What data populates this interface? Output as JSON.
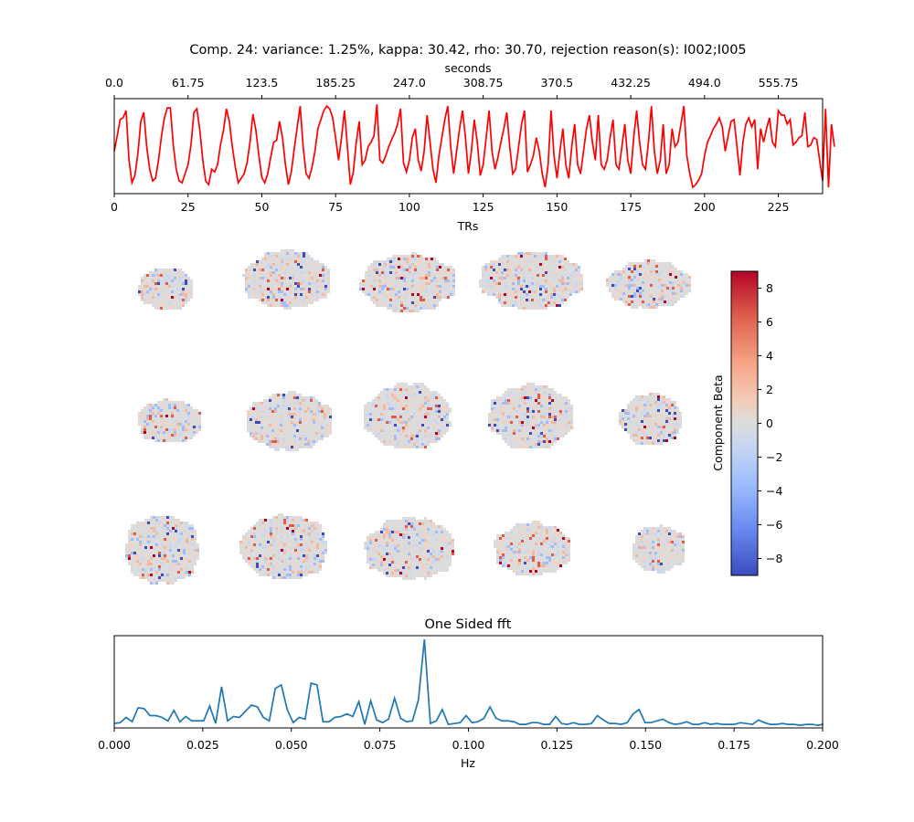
{
  "figure_title": "Comp. 24: variance: 1.25%, kappa: 30.42, rho: 30.70, rejection reason(s): I002;I005",
  "chart_data": [
    {
      "type": "line",
      "name": "timeseries",
      "color": "#ff0000",
      "xlabel": "TRs",
      "xlim": [
        0,
        240
      ],
      "xticks": [
        0,
        25,
        50,
        75,
        100,
        125,
        150,
        175,
        200,
        225
      ],
      "secondary_xlabel": "seconds",
      "secondary_xticks": [
        0,
        61.75,
        123.5,
        185.25,
        247.0,
        308.75,
        370.5,
        432.25,
        494.0,
        555.75
      ],
      "secondary_xtick_labels": [
        "0.0",
        "61.75",
        "123.5",
        "185.25",
        "247.0",
        "308.75",
        "370.5",
        "432.25",
        "494.0",
        "555.75"
      ],
      "ylim": [
        0,
        1
      ],
      "show_yticks": false,
      "values": [
        0.45,
        0.62,
        0.8,
        0.82,
        0.9,
        0.35,
        0.1,
        0.18,
        0.42,
        0.78,
        0.88,
        0.5,
        0.25,
        0.12,
        0.15,
        0.35,
        0.62,
        0.82,
        0.93,
        0.93,
        0.52,
        0.25,
        0.12,
        0.1,
        0.2,
        0.3,
        0.52,
        0.88,
        0.92,
        0.68,
        0.35,
        0.12,
        0.08,
        0.25,
        0.22,
        0.3,
        0.52,
        0.68,
        0.92,
        0.78,
        0.5,
        0.28,
        0.1,
        0.15,
        0.2,
        0.32,
        0.55,
        0.86,
        0.68,
        0.4,
        0.16,
        0.1,
        0.2,
        0.38,
        0.55,
        0.57,
        0.78,
        0.6,
        0.3,
        0.08,
        0.22,
        0.48,
        0.72,
        0.95,
        0.5,
        0.2,
        0.15,
        0.27,
        0.45,
        0.7,
        0.8,
        0.9,
        0.95,
        0.92,
        0.82,
        0.6,
        0.35,
        0.6,
        0.9,
        0.5,
        0.08,
        0.22,
        0.55,
        0.78,
        0.3,
        0.35,
        0.5,
        0.55,
        0.62,
        0.97,
        0.35,
        0.32,
        0.4,
        0.5,
        0.58,
        0.65,
        0.75,
        0.92,
        0.32,
        0.22,
        0.35,
        0.6,
        0.7,
        0.35,
        0.23,
        0.45,
        0.85,
        0.55,
        0.25,
        0.1,
        0.4,
        0.6,
        0.8,
        0.95,
        0.5,
        0.2,
        0.45,
        0.7,
        0.9,
        0.6,
        0.2,
        0.45,
        0.8,
        0.55,
        0.18,
        0.3,
        0.6,
        0.9,
        0.45,
        0.25,
        0.38,
        0.55,
        0.7,
        0.88,
        0.5,
        0.2,
        0.25,
        0.5,
        0.75,
        0.9,
        0.22,
        0.3,
        0.4,
        0.6,
        0.45,
        0.2,
        0.05,
        0.3,
        0.9,
        0.4,
        0.15,
        0.45,
        0.7,
        0.3,
        0.15,
        0.5,
        0.75,
        0.3,
        0.2,
        0.45,
        0.7,
        0.85,
        0.55,
        0.35,
        0.85,
        0.3,
        0.25,
        0.35,
        0.6,
        0.8,
        0.3,
        0.25,
        0.5,
        0.75,
        0.35,
        0.2,
        0.6,
        0.9,
        0.55,
        0.3,
        0.25,
        0.55,
        0.95,
        0.45,
        0.2,
        0.35,
        0.75,
        0.2,
        0.3,
        0.7,
        0.5,
        0.55,
        0.75,
        0.95,
        0.4,
        0.2,
        0.05,
        0.08,
        0.13,
        0.2,
        0.4,
        0.55,
        0.62,
        0.7,
        0.75,
        0.82,
        0.72,
        0.45,
        0.62,
        0.78,
        0.8,
        0.5,
        0.18,
        0.55,
        0.75,
        0.82,
        0.72,
        0.8,
        0.25,
        0.7,
        0.55,
        0.7,
        0.82,
        0.55,
        0.5,
        0.9,
        0.85,
        0.85,
        0.75,
        0.8,
        0.52,
        0.55,
        0.6,
        0.62,
        0.88,
        0.5,
        0.52,
        0.6,
        0.58,
        0.35,
        0.12,
        0.92,
        0.05,
        0.75,
        0.5
      ]
    },
    {
      "type": "heatmap",
      "name": "component-maps",
      "colormap": "coolwarm",
      "colorbar_label": "Component Beta",
      "vlim": [
        -9,
        9
      ],
      "colorbar_ticks": [
        "8",
        "6",
        "4",
        "2",
        "0",
        "−2",
        "−4",
        "−6",
        "−8"
      ],
      "rows": 3,
      "cols": 5
    },
    {
      "type": "line",
      "name": "fft",
      "title": "One Sided fft",
      "color": "#1f77b4",
      "xlabel": "Hz",
      "xlim": [
        0,
        0.2
      ],
      "xticks": [
        0,
        0.025,
        0.05,
        0.075,
        0.1,
        0.125,
        0.15,
        0.175,
        0.2
      ],
      "xtick_labels": [
        "0.000",
        "0.025",
        "0.050",
        "0.075",
        "0.100",
        "0.125",
        "0.150",
        "0.175",
        "0.200"
      ],
      "ylim": [
        0,
        1
      ],
      "show_yticks": false,
      "x_step": 0.001684,
      "values": [
        0.04,
        0.05,
        0.11,
        0.06,
        0.22,
        0.21,
        0.13,
        0.13,
        0.11,
        0.07,
        0.19,
        0.06,
        0.12,
        0.07,
        0.07,
        0.07,
        0.24,
        0.04,
        0.46,
        0.07,
        0.12,
        0.11,
        0.18,
        0.25,
        0.23,
        0.11,
        0.07,
        0.44,
        0.48,
        0.2,
        0.05,
        0.11,
        0.09,
        0.5,
        0.48,
        0.06,
        0.06,
        0.11,
        0.12,
        0.15,
        0.12,
        0.29,
        0.03,
        0.3,
        0.08,
        0.05,
        0.09,
        0.33,
        0.1,
        0.06,
        0.07,
        0.31,
        1.0,
        0.04,
        0.07,
        0.2,
        0.03,
        0.04,
        0.05,
        0.13,
        0.05,
        0.06,
        0.1,
        0.23,
        0.1,
        0.07,
        0.07,
        0.06,
        0.03,
        0.03,
        0.05,
        0.05,
        0.03,
        0.03,
        0.12,
        0.04,
        0.03,
        0.05,
        0.03,
        0.03,
        0.04,
        0.13,
        0.08,
        0.04,
        0.04,
        0.03,
        0.05,
        0.15,
        0.2,
        0.05,
        0.05,
        0.07,
        0.09,
        0.05,
        0.03,
        0.04,
        0.06,
        0.03,
        0.03,
        0.05,
        0.03,
        0.04,
        0.03,
        0.03,
        0.03,
        0.05,
        0.04,
        0.03,
        0.08,
        0.05,
        0.03,
        0.03,
        0.04,
        0.03,
        0.03,
        0.02,
        0.03,
        0.03,
        0.02,
        0.03,
        0.04
      ]
    }
  ]
}
